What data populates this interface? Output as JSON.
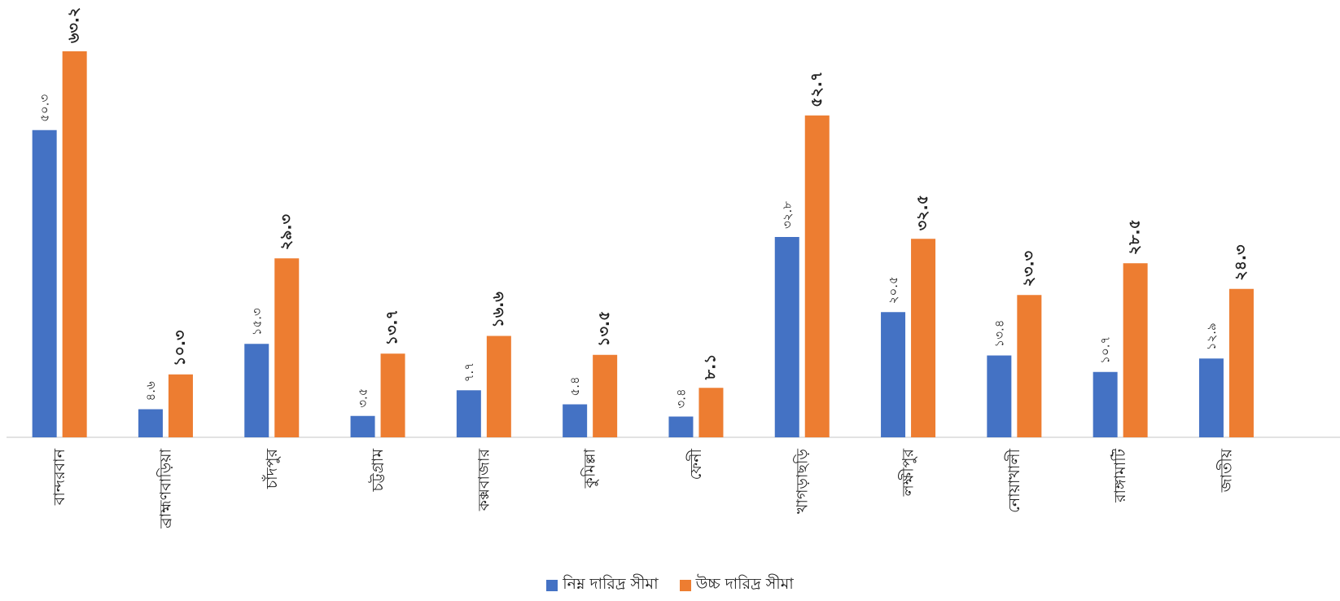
{
  "chart_data": {
    "type": "bar",
    "categories": [
      "বান্দরবান",
      "ব্রাহ্মণবাড়িয়া",
      "চাঁদপুর",
      "চট্টগ্রাম",
      "কক্সবাজার",
      "কুমিল্লা",
      "ফেনী",
      "খাগড়াছড়ি",
      "লক্ষীপুর",
      "নোয়াখালী",
      "রাঙ্গামাটি",
      "জাতীয়"
    ],
    "series": [
      {
        "name": "নিম্ন দারিদ্র সীমা",
        "color": "#4472C4",
        "values": [
          50.3,
          4.6,
          15.3,
          3.5,
          7.7,
          5.4,
          3.4,
          32.8,
          20.5,
          13.4,
          10.7,
          12.9
        ],
        "labels": [
          "৫০.৩",
          "৪.৬",
          "১৫.৩",
          "৩.৫",
          "৭.৭",
          "৫.৪",
          "৩.৪",
          "৩২.৮",
          "২০.৫",
          "১৩.৪",
          "১০.৭",
          "১২.৯"
        ]
      },
      {
        "name": "উচ্চ দারিদ্র সীমা",
        "color": "#ED7D31",
        "values": [
          63.2,
          10.3,
          29.3,
          13.7,
          16.6,
          13.5,
          8.1,
          52.7,
          32.5,
          23.3,
          28.5,
          24.3
        ],
        "labels": [
          "৬৩.২",
          "১০.৩",
          "২৯.৩",
          "১৩.৭",
          "১৬.৬",
          "১৩.৫",
          "৮.১",
          "৫২.৭",
          "৩২.৫",
          "২৩.৩",
          "২৮.৫",
          "২৪.৩"
        ]
      }
    ],
    "ylim": [
      0,
      63.2
    ],
    "grid": false,
    "legend_position": "bottom"
  }
}
